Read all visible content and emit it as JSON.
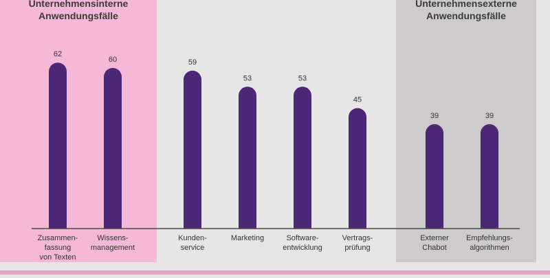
{
  "colors": {
    "background": "#e6e6e6",
    "internal_band": "#f5b8d6",
    "external_band": "#cdcbcb",
    "bar": "#4b2775",
    "text": "#333333",
    "header_text": "#3b3b3b",
    "axis": "#4a4a4a"
  },
  "chart_data": {
    "type": "bar",
    "title": "",
    "xlabel": "",
    "ylabel": "",
    "ylim": [
      0,
      70
    ],
    "grid": false,
    "groups": [
      {
        "name": "internal",
        "label_lines": [
          "Unternehmensinterne",
          "Anwendungsfälle"
        ],
        "categories": [
          0,
          1
        ]
      },
      {
        "name": "external",
        "label_lines": [
          "Unternehmensexterne",
          "Anwendungsfälle"
        ],
        "categories": [
          6,
          7
        ]
      }
    ],
    "categories": [
      [
        "Zusammen-",
        "fassung",
        "von Texten"
      ],
      [
        "Wissens-",
        "management"
      ],
      [
        "Kunden-",
        "service"
      ],
      [
        "Marketing"
      ],
      [
        "Software-",
        "entwicklung"
      ],
      [
        "Vertrags-",
        "prüfung"
      ],
      [
        "Externer",
        "Chabot"
      ],
      [
        "Empfehlungs-",
        "algorithmen"
      ]
    ],
    "values": [
      62,
      60,
      59,
      53,
      53,
      45,
      39,
      39
    ],
    "value_labels": [
      "62",
      "60",
      "59",
      "53",
      "53",
      "45",
      "39",
      "39"
    ]
  }
}
